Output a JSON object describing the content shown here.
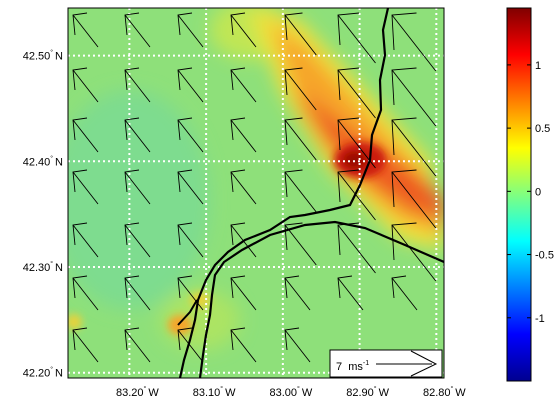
{
  "map": {
    "lat_ticks": [
      {
        "value": 42.5,
        "label": "42.50",
        "hemi": "N"
      },
      {
        "value": 42.4,
        "label": "42.40",
        "hemi": "N"
      },
      {
        "value": 42.3,
        "label": "42.30",
        "hemi": "N"
      },
      {
        "value": 42.2,
        "label": "42.20",
        "hemi": "N"
      }
    ],
    "lon_ticks": [
      {
        "value": -83.2,
        "label": "83.20",
        "hemi": "W"
      },
      {
        "value": -83.1,
        "label": "83.10",
        "hemi": "W"
      },
      {
        "value": -83.0,
        "label": "83.00",
        "hemi": "W"
      },
      {
        "value": -82.9,
        "label": "82.90",
        "hemi": "W"
      },
      {
        "value": -82.8,
        "label": "82.80",
        "hemi": "W"
      }
    ],
    "lat_range": [
      42.195,
      42.545
    ],
    "lon_range": [
      -83.28,
      -82.79
    ],
    "scale_arrow": {
      "value": "7",
      "unit_main": "ms",
      "unit_exp": "-1"
    },
    "colorbar": {
      "ticks": [
        {
          "value": 1,
          "label": "1"
        },
        {
          "value": 0.5,
          "label": "0.5"
        },
        {
          "value": 0,
          "label": "0"
        },
        {
          "value": -0.5,
          "label": "-0.5"
        },
        {
          "value": -1,
          "label": "-1"
        }
      ],
      "range": [
        -1.5,
        1.45
      ]
    },
    "colors": {
      "field_background": "#8ee07a",
      "grid": "#ffffff",
      "coast": "#000000"
    }
  }
}
